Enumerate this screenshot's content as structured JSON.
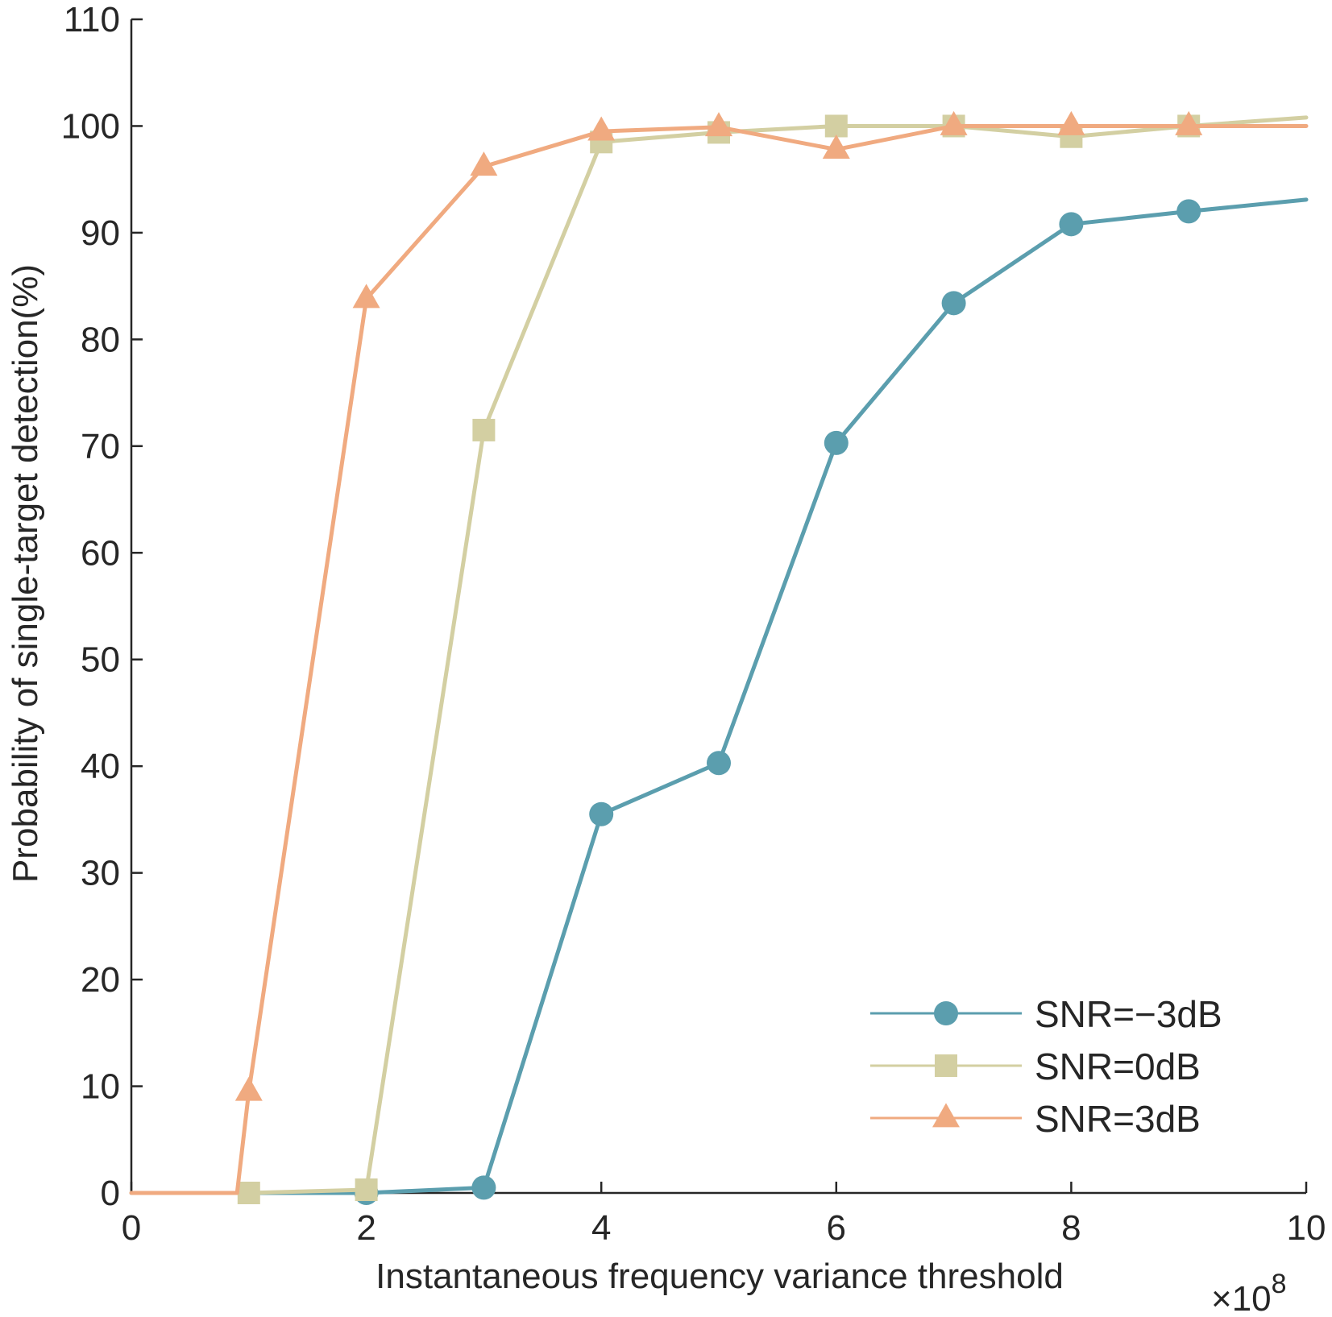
{
  "chart_data": {
    "type": "line",
    "title": "",
    "xlabel": "Instantaneous frequency variance threshold",
    "ylabel": "Probability of single-target detection(%)",
    "x_multiplier_label": "×10",
    "x_multiplier_exponent": "8",
    "xlim": [
      0,
      10
    ],
    "ylim": [
      0,
      110
    ],
    "xticks": [
      0,
      2,
      4,
      6,
      8,
      10
    ],
    "yticks": [
      0,
      10,
      20,
      30,
      40,
      50,
      60,
      70,
      80,
      90,
      100,
      110
    ],
    "xtick_labels": [
      "0",
      "2",
      "4",
      "6",
      "8",
      "10"
    ],
    "ytick_labels": [
      "0",
      "10",
      "20",
      "30",
      "40",
      "50",
      "60",
      "70",
      "80",
      "90",
      "100",
      "110"
    ],
    "grid": false,
    "legend_position": "bottom-right",
    "series": [
      {
        "name": "SNR=−3dB",
        "color": "#5B9EAE",
        "marker": "circle",
        "x": [
          0,
          1,
          2,
          3,
          4,
          5,
          6,
          7,
          8,
          9,
          10
        ],
        "values": [
          0,
          0,
          0,
          0.5,
          35.5,
          40.3,
          70.3,
          83.4,
          90.8,
          92,
          93.1
        ],
        "marker_x": [
          2,
          3,
          4,
          5,
          6,
          7,
          8,
          9
        ],
        "marker_values": [
          0,
          0.5,
          35.5,
          40.3,
          70.3,
          83.4,
          90.8,
          92
        ]
      },
      {
        "name": "SNR=0dB",
        "color": "#D3CFA2",
        "marker": "square",
        "x": [
          0,
          1,
          2,
          3,
          4,
          5,
          6,
          7,
          8,
          9,
          10
        ],
        "values": [
          0,
          0,
          0.3,
          71.5,
          98.5,
          99.4,
          100,
          100,
          99,
          100,
          100.8
        ],
        "marker_x": [
          1,
          2,
          3,
          4,
          5,
          6,
          7,
          8,
          9
        ],
        "marker_values": [
          0,
          0.3,
          71.5,
          98.5,
          99.4,
          100,
          100,
          99,
          100
        ]
      },
      {
        "name": "SNR=3dB",
        "color": "#F0AA80",
        "marker": "triangle",
        "x": [
          0,
          0.9,
          1,
          2,
          3,
          4,
          5,
          6,
          7,
          8,
          9,
          10
        ],
        "values": [
          0,
          0,
          9.5,
          83.8,
          96.2,
          99.5,
          99.9,
          97.8,
          100,
          100,
          100,
          100
        ],
        "marker_x": [
          1,
          2,
          3,
          4,
          5,
          6,
          7,
          8,
          9
        ],
        "marker_values": [
          9.5,
          83.8,
          96.2,
          99.5,
          99.9,
          97.8,
          100,
          100,
          100
        ]
      }
    ]
  }
}
